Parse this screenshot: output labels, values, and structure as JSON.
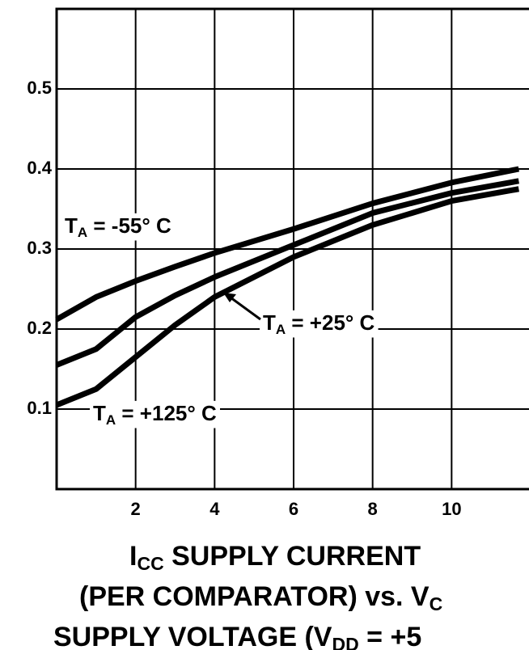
{
  "chart_data": {
    "type": "line",
    "x": [
      0,
      1,
      2,
      3,
      4,
      6,
      8,
      10,
      11.7
    ],
    "series": [
      {
        "name": "-55° C",
        "color": "#000000",
        "values": [
          0.212,
          0.24,
          0.26,
          0.278,
          0.295,
          0.325,
          0.357,
          0.383,
          0.4
        ]
      },
      {
        "name": "+25° C",
        "color": "#000000",
        "values": [
          0.155,
          0.175,
          0.215,
          0.242,
          0.265,
          0.305,
          0.345,
          0.37,
          0.385
        ]
      },
      {
        "name": "+125° C",
        "color": "#000000",
        "values": [
          0.105,
          0.125,
          0.165,
          0.205,
          0.24,
          0.29,
          0.33,
          0.36,
          0.375
        ]
      }
    ],
    "annotations": [
      {
        "main": "T",
        "sub": "A",
        "rest": " = -55° C"
      },
      {
        "main": "T",
        "sub": "A",
        "rest": " = +25° C"
      },
      {
        "main": "T",
        "sub": "A",
        "rest": " = +125° C"
      }
    ],
    "x_axis_title": [
      [
        {
          "text": "I"
        },
        {
          "text": "CC",
          "sub": true
        },
        {
          "text": " SUPPLY CURRENT"
        }
      ],
      [
        {
          "text": "(PER COMPARATOR) vs. V"
        },
        {
          "text": "C",
          "sub": true
        }
      ],
      [
        {
          "text": "SUPPLY VOLTAGE (V"
        },
        {
          "text": "DD",
          "sub": true
        },
        {
          "text": " = +5"
        }
      ]
    ],
    "xlim": [
      0,
      12
    ],
    "xticks": [
      2,
      4,
      6,
      8,
      10
    ],
    "ylim": [
      0,
      0.6
    ],
    "yticks": [
      0.1,
      0.2,
      0.3,
      0.4,
      0.5
    ],
    "grid": true
  }
}
